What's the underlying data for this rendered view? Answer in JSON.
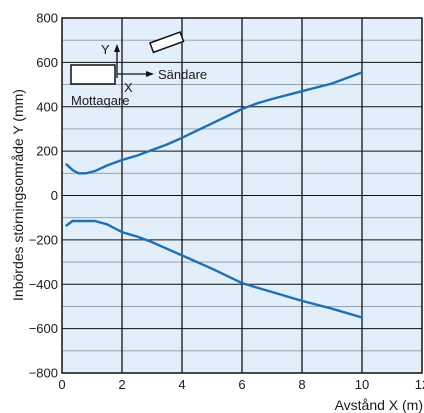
{
  "chart_data": {
    "type": "line",
    "title": "",
    "xlabel": "Avstånd X (m)",
    "ylabel": "Inbördes störningsområde Y (mm)",
    "xlim": [
      0,
      12
    ],
    "ylim": [
      -800,
      800
    ],
    "xticks": [
      0,
      2,
      4,
      6,
      8,
      10,
      12
    ],
    "yticks": [
      800,
      600,
      400,
      200,
      0,
      -200,
      -400,
      -600,
      -800
    ],
    "grid": true,
    "colors": {
      "plot_background": "#e2eef9",
      "major_grid": "#111111",
      "minor_grid": "#8a9aa8",
      "series": "#1f6fb5"
    },
    "series": [
      {
        "x": [
          0.15,
          0.35,
          0.55,
          0.8,
          1.1,
          1.5,
          2,
          2.5,
          3,
          3.5,
          4,
          5,
          6,
          6.5,
          7,
          8,
          9,
          10
        ],
        "y": [
          140,
          115,
          100,
          100,
          110,
          135,
          160,
          180,
          205,
          230,
          260,
          325,
          390,
          415,
          435,
          470,
          505,
          555
        ]
      },
      {
        "x": [
          0.15,
          0.35,
          0.55,
          0.8,
          1.1,
          1.5,
          2,
          2.5,
          3,
          3.5,
          4,
          5,
          6,
          6.5,
          7,
          8,
          9,
          10
        ],
        "y": [
          -135,
          -115,
          -115,
          -115,
          -115,
          -130,
          -165,
          -185,
          -210,
          -240,
          -270,
          -330,
          -395,
          -415,
          -435,
          -475,
          -510,
          -550
        ]
      }
    ],
    "inset": {
      "labels": {
        "y_axis": "Y",
        "x_axis": "X",
        "transmitter": "Sändare",
        "receiver": "Mottagare"
      }
    }
  }
}
